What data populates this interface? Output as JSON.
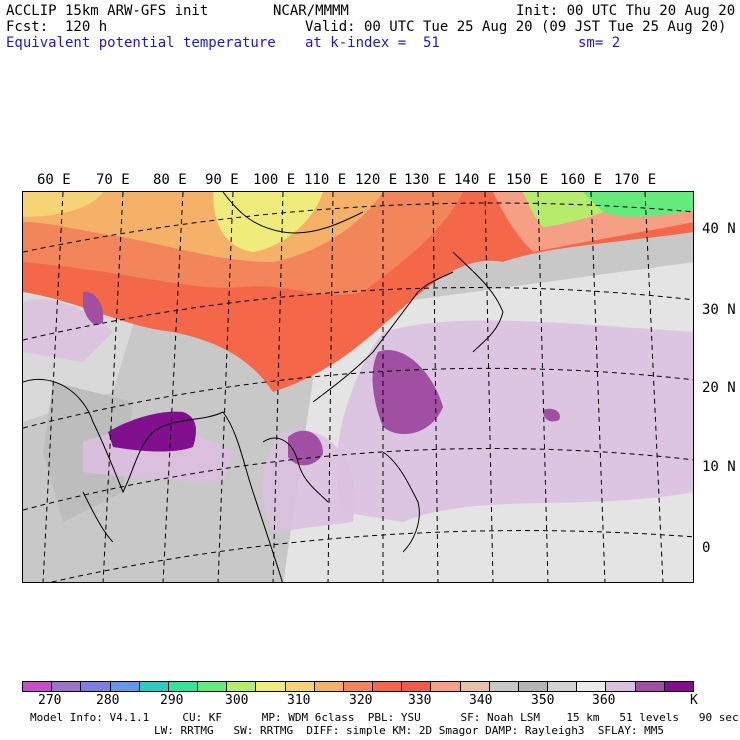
{
  "header": {
    "model": "ACCLIP 15km ARW-GFS init",
    "forecast": "Fcst:  120 h",
    "center": "NCAR/MMMM",
    "init": "Init: 00 UTC Thu 20 Aug 20",
    "valid": "Valid: 00 UTC Tue 25 Aug 20 (09 JST Tue 25 Aug 20)",
    "field": "Equivalent potential temperature",
    "level": "at k-index =  51",
    "smoothing": "sm= 2"
  },
  "map": {
    "lon_labels": [
      "60 E",
      "70 E",
      "80 E",
      "90 E",
      "100 E",
      "110 E",
      "120 E",
      "130 E",
      "140 E",
      "150 E",
      "160 E",
      "170 E"
    ],
    "lat_labels": [
      "40 N",
      "30 N",
      "20 N",
      "10 N",
      "0"
    ]
  },
  "colorbar": {
    "colors": [
      "#c54fc7",
      "#9a74c9",
      "#7f7ee0",
      "#6597e9",
      "#2ec9c0",
      "#35e29a",
      "#64eb7c",
      "#b6ec6c",
      "#f0ec7c",
      "#f6d374",
      "#f5b168",
      "#f2855a",
      "#f56749",
      "#f45a4a",
      "#f5a085",
      "#e7c1a8",
      "#c8c8c8",
      "#b4b4b4",
      "#d2d2d2",
      "#ececec",
      "#dbbfdf",
      "#a04fa3",
      "#80108e"
    ],
    "labels": [
      "270",
      "280",
      "290",
      "300",
      "310",
      "320",
      "330",
      "340",
      "350",
      "360",
      "K"
    ],
    "unit": "K"
  },
  "footer": {
    "line1": "Model Info: V4.1.1     CU: KF      MP: WDM 6class  PBL: YSU      SF: Noah LSM    15 km   51 levels   90 sec",
    "line2": "LW: RRTMG   SW: RRTMG  DIFF: simple KM: 2D Smagor DAMP: Rayleigh3  SFLAY: MM5"
  }
}
